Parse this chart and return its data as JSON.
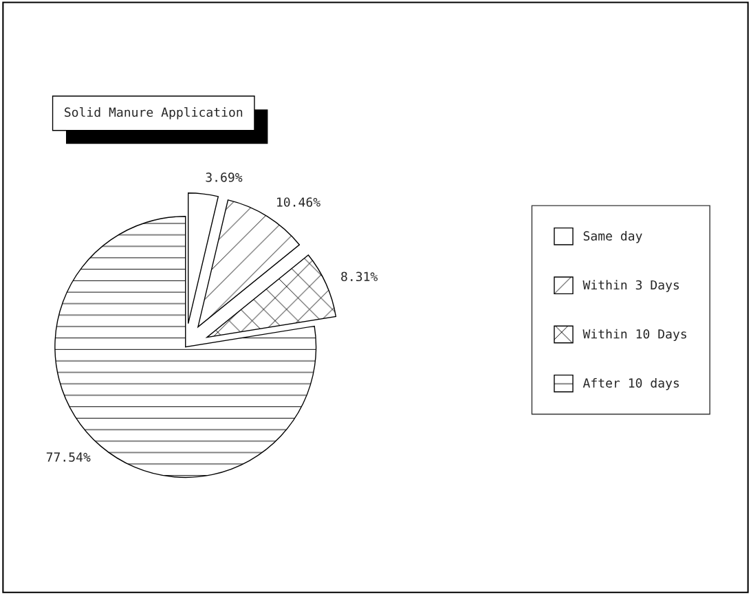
{
  "chart_data": {
    "type": "pie",
    "title": "Solid Manure Application",
    "categories": [
      "Same day",
      "Within 3 Days",
      "Within 10 Days",
      "After 10 days"
    ],
    "values": [
      3.69,
      10.46,
      8.31,
      77.54
    ],
    "value_labels": [
      "3.69%",
      "10.46%",
      "8.31%",
      "77.54%"
    ],
    "colors": [
      "#ffffff",
      "#ffffff",
      "#ffffff",
      "#ffffff"
    ],
    "legend": "right"
  }
}
